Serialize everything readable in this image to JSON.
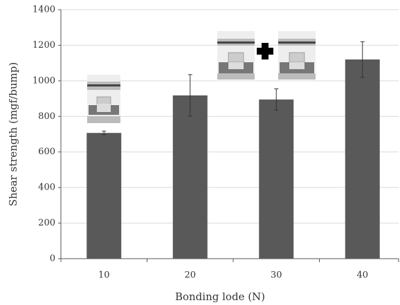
{
  "chart_data": {
    "type": "bar",
    "x_label": "Bonding lode (N)",
    "y_label": "Shear strength (mgf/bump)",
    "categories": [
      "10",
      "20",
      "30",
      "40"
    ],
    "values": [
      707,
      918,
      895,
      1120
    ],
    "errors": [
      10,
      117,
      60,
      100
    ],
    "color": "#595959",
    "ylim": [
      0,
      1400
    ],
    "yticks": [
      0,
      200,
      400,
      600,
      800,
      1000,
      1200,
      1400
    ],
    "grid": true
  }
}
